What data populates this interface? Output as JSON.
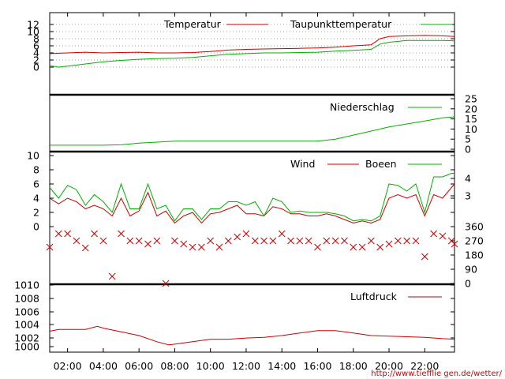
{
  "x_axis": {
    "start": "01:00",
    "end": "23:40",
    "ticks": [
      "02:00",
      "04:00",
      "06:00",
      "08:00",
      "10:00",
      "12:00",
      "14:00",
      "16:00",
      "18:00",
      "20:00",
      "22:00"
    ]
  },
  "credit": "http://www.tiefflie gen.de/wetter/",
  "colors": {
    "red": "#cc0000",
    "green": "#00b000"
  },
  "chart_data": [
    {
      "type": "line",
      "y_ticks": [
        0,
        2,
        4,
        6,
        8,
        10,
        12
      ],
      "ylim": [
        -1,
        14
      ],
      "grid": true,
      "legend_position": "top",
      "series": [
        {
          "name": "Temperatur",
          "color": "#cc0000",
          "x": [
            "01:00",
            "02:00",
            "03:00",
            "04:00",
            "05:00",
            "06:00",
            "07:00",
            "08:00",
            "09:00",
            "10:00",
            "11:00",
            "12:00",
            "13:00",
            "14:00",
            "15:00",
            "16:00",
            "17:00",
            "18:00",
            "19:00",
            "19:30",
            "20:00",
            "21:00",
            "22:00",
            "23:00",
            "23:40"
          ],
          "values": [
            3.8,
            4.0,
            4.2,
            4.0,
            4.1,
            4.2,
            4.0,
            4.0,
            4.1,
            4.4,
            4.8,
            5.0,
            5.1,
            5.2,
            5.3,
            5.4,
            5.6,
            6.0,
            6.3,
            8.0,
            8.6,
            8.8,
            8.9,
            8.8,
            8.6
          ]
        },
        {
          "name": "Taupunkttemperatur",
          "color": "#00b000",
          "x": [
            "01:00",
            "01:30",
            "02:00",
            "03:00",
            "04:00",
            "05:00",
            "06:00",
            "07:00",
            "08:00",
            "09:00",
            "10:00",
            "11:00",
            "12:00",
            "13:00",
            "14:00",
            "15:00",
            "16:00",
            "17:00",
            "18:00",
            "19:00",
            "19:30",
            "20:00",
            "21:00",
            "22:00",
            "23:00",
            "23:40"
          ],
          "values": [
            0.4,
            0.0,
            0.3,
            0.9,
            1.5,
            1.9,
            2.2,
            2.4,
            2.5,
            2.7,
            3.2,
            3.6,
            3.8,
            4.0,
            4.0,
            4.1,
            4.2,
            4.5,
            4.7,
            5.0,
            6.5,
            7.0,
            7.5,
            7.5,
            7.5,
            7.4
          ]
        }
      ]
    },
    {
      "type": "line",
      "y_ticks_right": [
        0,
        5,
        10,
        15,
        20,
        25
      ],
      "ylim": [
        0,
        27
      ],
      "series": [
        {
          "name": "Niederschlag",
          "color": "#00b000",
          "x": [
            "01:00",
            "04:00",
            "05:00",
            "06:00",
            "07:00",
            "08:00",
            "10:00",
            "12:00",
            "14:00",
            "16:00",
            "17:00",
            "18:00",
            "19:00",
            "20:00",
            "21:00",
            "22:00",
            "23:00",
            "23:40"
          ],
          "values": [
            2.0,
            2.0,
            2.2,
            3.0,
            3.5,
            4.0,
            4.0,
            4.0,
            4.0,
            4.0,
            5.0,
            7.0,
            9.0,
            11.0,
            12.5,
            14.0,
            15.5,
            16.0
          ]
        }
      ]
    },
    {
      "type": "line",
      "y_ticks": [
        0,
        2,
        4,
        6,
        8,
        10
      ],
      "y_ticks_right": [
        3,
        4
      ],
      "ylim": [
        0,
        10.5
      ],
      "series": [
        {
          "name": "Wind",
          "color": "#cc0000",
          "x": [
            "01:00",
            "01:30",
            "02:00",
            "02:30",
            "03:00",
            "03:30",
            "04:00",
            "04:30",
            "05:00",
            "05:30",
            "06:00",
            "06:30",
            "07:00",
            "07:30",
            "08:00",
            "08:30",
            "09:00",
            "09:30",
            "10:00",
            "10:30",
            "11:00",
            "11:30",
            "12:00",
            "12:30",
            "13:00",
            "13:30",
            "14:00",
            "14:30",
            "15:00",
            "15:30",
            "16:00",
            "16:30",
            "17:00",
            "17:30",
            "18:00",
            "18:30",
            "19:00",
            "19:30",
            "20:00",
            "20:30",
            "21:00",
            "21:30",
            "22:00",
            "22:30",
            "23:00",
            "23:30",
            "23:40"
          ],
          "values": [
            4.0,
            3.2,
            4.0,
            3.5,
            2.5,
            3.0,
            2.5,
            1.5,
            4.0,
            1.5,
            2.2,
            4.8,
            1.5,
            2.2,
            0.5,
            1.5,
            2.0,
            0.5,
            1.8,
            2.0,
            2.5,
            3.0,
            1.8,
            1.8,
            1.5,
            2.8,
            2.5,
            1.8,
            1.8,
            1.5,
            1.5,
            1.8,
            1.5,
            1.0,
            0.5,
            0.8,
            0.5,
            1.0,
            4.0,
            4.5,
            4.0,
            4.5,
            1.5,
            4.5,
            4.0,
            5.5,
            6.0
          ]
        },
        {
          "name": "Boeen",
          "color": "#00b000",
          "x": [
            "01:00",
            "01:30",
            "02:00",
            "02:30",
            "03:00",
            "03:30",
            "04:00",
            "04:30",
            "05:00",
            "05:30",
            "06:00",
            "06:30",
            "07:00",
            "07:30",
            "08:00",
            "08:30",
            "09:00",
            "09:30",
            "10:00",
            "10:30",
            "11:00",
            "11:30",
            "12:00",
            "12:30",
            "13:00",
            "13:30",
            "14:00",
            "14:30",
            "15:00",
            "15:30",
            "16:00",
            "16:30",
            "17:00",
            "17:30",
            "18:00",
            "18:30",
            "19:00",
            "19:30",
            "20:00",
            "20:30",
            "21:00",
            "21:30",
            "22:00",
            "22:30",
            "23:00",
            "23:30",
            "23:40"
          ],
          "values": [
            5.5,
            4.0,
            5.8,
            5.2,
            3.0,
            4.5,
            3.5,
            2.0,
            6.0,
            2.5,
            2.5,
            6.0,
            2.5,
            3.0,
            0.8,
            2.5,
            2.5,
            1.0,
            2.5,
            2.5,
            3.5,
            3.5,
            3.0,
            3.5,
            1.5,
            4.0,
            3.5,
            2.0,
            2.2,
            2.0,
            2.0,
            2.0,
            1.8,
            1.5,
            0.8,
            1.0,
            0.8,
            1.5,
            6.0,
            5.8,
            5.0,
            6.0,
            2.0,
            7.0,
            7.0,
            7.5,
            7.5
          ]
        }
      ]
    },
    {
      "type": "scatter",
      "y_ticks_right": [
        0,
        90,
        180,
        270,
        360
      ],
      "ylim": [
        0,
        360
      ],
      "series": [
        {
          "name": "",
          "color": "#cc0000",
          "x": [
            "01:00",
            "01:30",
            "02:00",
            "02:30",
            "03:00",
            "03:30",
            "04:00",
            "04:30",
            "05:00",
            "05:30",
            "06:00",
            "06:30",
            "07:00",
            "07:30",
            "08:00",
            "08:30",
            "09:00",
            "09:30",
            "10:00",
            "10:30",
            "11:00",
            "11:30",
            "12:00",
            "12:30",
            "13:00",
            "13:30",
            "14:00",
            "14:30",
            "15:00",
            "15:30",
            "16:00",
            "16:30",
            "17:00",
            "17:30",
            "18:00",
            "18:30",
            "19:00",
            "19:30",
            "20:00",
            "20:30",
            "21:00",
            "21:30",
            "22:00",
            "22:30",
            "23:00",
            "23:30",
            "23:40"
          ],
          "values": [
            230,
            315,
            315,
            270,
            225,
            315,
            270,
            45,
            315,
            270,
            270,
            250,
            270,
            0,
            270,
            250,
            230,
            230,
            270,
            230,
            270,
            295,
            315,
            270,
            270,
            270,
            315,
            270,
            270,
            270,
            230,
            270,
            270,
            270,
            230,
            230,
            270,
            230,
            250,
            270,
            270,
            270,
            170,
            315,
            300,
            270,
            250
          ]
        }
      ]
    },
    {
      "type": "line",
      "y_ticks": [
        1000,
        1002,
        1004,
        1006,
        1008,
        1010
      ],
      "ylim": [
        999.6,
        1011
      ],
      "series": [
        {
          "name": "Luftdruck",
          "color": "#cc0000",
          "x": [
            "01:00",
            "01:30",
            "02:00",
            "03:00",
            "03:40",
            "04:00",
            "05:00",
            "06:00",
            "07:00",
            "07:40",
            "08:00",
            "09:00",
            "10:00",
            "11:00",
            "12:00",
            "13:00",
            "14:00",
            "15:00",
            "16:00",
            "17:00",
            "18:00",
            "19:00",
            "20:00",
            "21:00",
            "22:00",
            "23:00",
            "23:40"
          ],
          "values": [
            1002.5,
            1002.8,
            1002.8,
            1002.8,
            1003.3,
            1003.0,
            1002.4,
            1001.8,
            1000.8,
            1000.3,
            1000.4,
            1000.8,
            1001.2,
            1001.2,
            1001.4,
            1001.5,
            1001.8,
            1002.2,
            1002.6,
            1002.6,
            1002.2,
            1001.8,
            1001.7,
            1001.6,
            1001.5,
            1001.3,
            1001.2
          ]
        }
      ]
    }
  ]
}
